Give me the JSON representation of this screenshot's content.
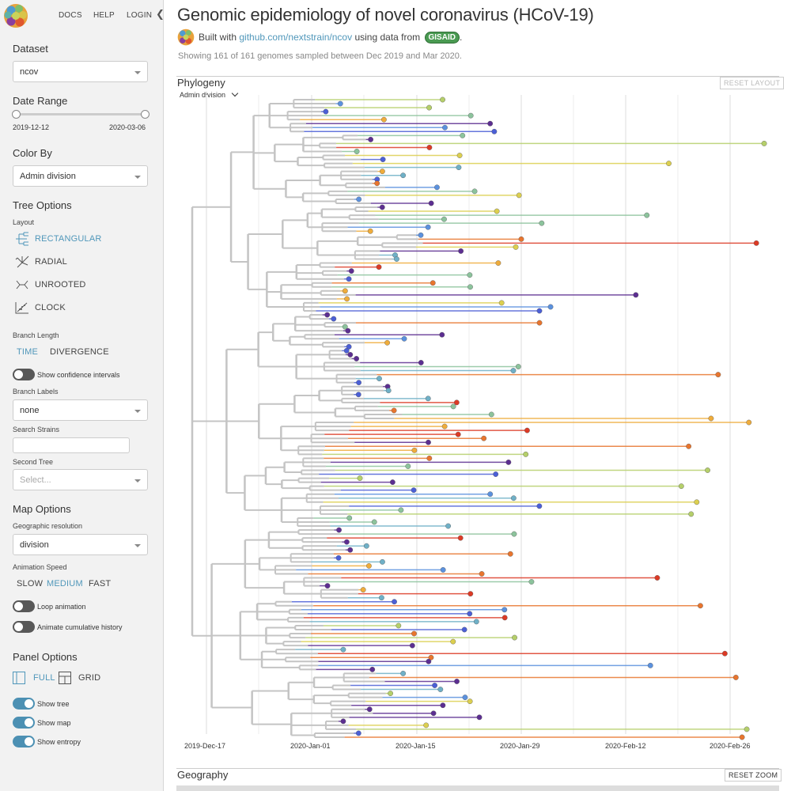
{
  "nav": {
    "docs": "DOCS",
    "help": "HELP",
    "login": "LOGIN",
    "collapse_icon": "chevron-left-icon"
  },
  "sidebar": {
    "dataset": {
      "title": "Dataset",
      "value": "ncov"
    },
    "date_range": {
      "title": "Date Range",
      "start": "2019-12-12",
      "end": "2020-03-06"
    },
    "color_by": {
      "title": "Color By",
      "value": "Admin division"
    },
    "tree_options": {
      "title": "Tree Options",
      "layout_label": "Layout",
      "layouts": [
        {
          "label": "RECTANGULAR",
          "icon": "rectangular-tree-icon",
          "selected": true
        },
        {
          "label": "RADIAL",
          "icon": "radial-tree-icon",
          "selected": false
        },
        {
          "label": "UNROOTED",
          "icon": "unrooted-tree-icon",
          "selected": false
        },
        {
          "label": "CLOCK",
          "icon": "clock-tree-icon",
          "selected": false
        }
      ],
      "branch_length_label": "Branch Length",
      "branch_length_time": "TIME",
      "branch_length_divergence": "DIVERGENCE",
      "confidence_label": "Show confidence intervals",
      "branch_labels_label": "Branch Labels",
      "branch_labels_value": "none",
      "search_label": "Search Strains",
      "search_value": "",
      "second_tree_label": "Second Tree",
      "second_tree_placeholder": "Select..."
    },
    "map_options": {
      "title": "Map Options",
      "geo_label": "Geographic resolution",
      "geo_value": "division",
      "animation_label": "Animation Speed",
      "speeds": [
        {
          "label": "SLOW",
          "selected": false
        },
        {
          "label": "MEDIUM",
          "selected": true
        },
        {
          "label": "FAST",
          "selected": false
        }
      ],
      "loop_label": "Loop animation",
      "cumulative_label": "Animate cumulative history"
    },
    "panel_options": {
      "title": "Panel Options",
      "full_label": "FULL",
      "grid_label": "GRID",
      "show_tree": "Show tree",
      "show_map": "Show map",
      "show_entropy": "Show entropy"
    }
  },
  "main": {
    "title": "Genomic epidemiology of novel coronavirus (HCoV-19)",
    "built_with": "Built with ",
    "repo_link": "github.com/nextstrain/ncov",
    "using_data": " using data from ",
    "gisaid": "GISAID",
    "period": ".",
    "showing": "Showing 161 of 161 genomes sampled between Dec 2019 and Mar 2020.",
    "phylogeny_title": "Phylogeny",
    "reset_layout": "RESET LAYOUT",
    "color_legend_label": "Admin division",
    "geography_title": "Geography",
    "reset_zoom": "RESET ZOOM"
  },
  "chart_data": {
    "type": "phylogenetic-tree",
    "x_axis_ticks": [
      "2019-Dec-17",
      "2020-Jan-01",
      "2020-Jan-15",
      "2020-Jan-29",
      "2020-Feb-12",
      "2020-Feb-26"
    ],
    "tip_count": 161,
    "colors": [
      "#5c2e91",
      "#4b5fd6",
      "#5b91de",
      "#6fb0c7",
      "#8cc39c",
      "#b5cf6a",
      "#dccf4f",
      "#efac3b",
      "#e8752e",
      "#dc3a25"
    ]
  }
}
